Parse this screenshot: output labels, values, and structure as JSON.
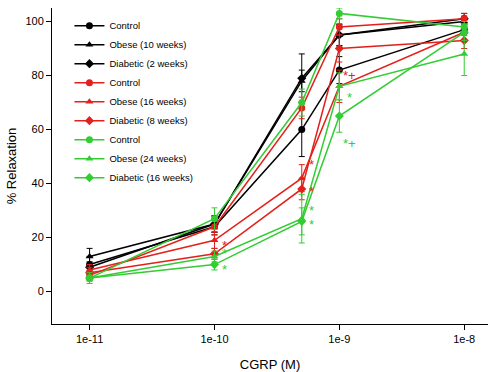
{
  "chart_data": {
    "type": "line",
    "x_label": "CGRP (M)",
    "y_label": "% Relaxation",
    "log": "x",
    "grid": false,
    "legend": "upper left",
    "x": [
      1e-11,
      1e-10,
      5e-10,
      1e-09,
      1e-08
    ],
    "xlim": [
      5e-12,
      1.55e-08
    ],
    "xticks": [
      {
        "value": 1e-11,
        "label": "1e-11"
      },
      {
        "value": 1e-10,
        "label": "1e-10"
      },
      {
        "value": 1e-09,
        "label": "1e-9"
      },
      {
        "value": 1e-08,
        "label": "1e-8"
      }
    ],
    "ylim": [
      -12,
      105
    ],
    "yticks": [
      0,
      20,
      40,
      60,
      80,
      100
    ],
    "series": [
      {
        "name": "Control",
        "color": "#000000",
        "marker": "circle",
        "line_style": "solid",
        "values": [
          10,
          24,
          60,
          82,
          97
        ],
        "errors": [
          3,
          3,
          10,
          5,
          2
        ]
      },
      {
        "name": "Obese (10 weeks)",
        "color": "#000000",
        "marker": "triangle-up",
        "line_style": "solid",
        "values": [
          13,
          25,
          78,
          95,
          100
        ],
        "errors": [
          3,
          3,
          4,
          4,
          2
        ]
      },
      {
        "name": "Diabetic (2 weeks)",
        "color": "#000000",
        "marker": "diamond",
        "line_style": "solid",
        "values": [
          9,
          25,
          79,
          95,
          101
        ],
        "errors": [
          2,
          3,
          9,
          4,
          2
        ]
      },
      {
        "name": "Control",
        "color": "#e3201b",
        "marker": "circle",
        "line_style": "solid",
        "values": [
          6,
          24,
          68,
          98,
          101
        ],
        "errors": [
          2,
          3,
          4,
          3,
          2
        ]
      },
      {
        "name": "Obese (16 weeks)",
        "color": "#e3201b",
        "marker": "triangle-up",
        "line_style": "solid",
        "values": [
          8,
          19,
          42,
          76,
          96
        ],
        "errors": [
          2,
          3,
          5,
          6,
          3
        ]
      },
      {
        "name": "Diabetic (8 weeks)",
        "color": "#e3201b",
        "marker": "diamond",
        "line_style": "solid",
        "values": [
          7,
          14,
          38,
          90,
          93
        ],
        "errors": [
          2,
          2,
          4,
          5,
          3
        ]
      },
      {
        "name": "Control",
        "color": "#33cc33",
        "marker": "circle",
        "line_style": "solid",
        "values": [
          5,
          27,
          70,
          103,
          98
        ],
        "errors": [
          2,
          4,
          5,
          2,
          2
        ]
      },
      {
        "name": "Obese (24 weeks)",
        "color": "#33cc33",
        "marker": "triangle-up",
        "line_style": "solid",
        "values": [
          5,
          13,
          27,
          76,
          88
        ],
        "errors": [
          1,
          2,
          9,
          5,
          8
        ]
      },
      {
        "name": "Diabetic (16 weeks)",
        "color": "#33cc33",
        "marker": "diamond",
        "line_style": "solid",
        "values": [
          5,
          10,
          26,
          65,
          96
        ],
        "errors": [
          1,
          2,
          5,
          6,
          3
        ]
      }
    ],
    "annotations": [
      {
        "x": 1e-10,
        "y": 17,
        "text": "*",
        "color": "#e3201b"
      },
      {
        "x": 5e-10,
        "y": 47,
        "text": "*",
        "color": "#e3201b"
      },
      {
        "x": 5e-10,
        "y": 37,
        "text": "*",
        "color": "#e3201b"
      },
      {
        "x": 1e-09,
        "y": 80,
        "text": "*+",
        "color": "#e3201b"
      },
      {
        "x": 1e-10,
        "y": 14,
        "text": "*",
        "color": "#33cc33"
      },
      {
        "x": 1e-10,
        "y": 8,
        "text": "*",
        "color": "#33cc33"
      },
      {
        "x": 5e-10,
        "y": 30,
        "text": "*",
        "color": "#33cc33"
      },
      {
        "x": 5e-10,
        "y": 25,
        "text": "*",
        "color": "#33cc33"
      },
      {
        "x": 1e-09,
        "y": 72,
        "text": "*",
        "color": "#33cc33"
      },
      {
        "x": 1e-09,
        "y": 55,
        "text": "*+",
        "color": "#33cc33"
      }
    ]
  }
}
